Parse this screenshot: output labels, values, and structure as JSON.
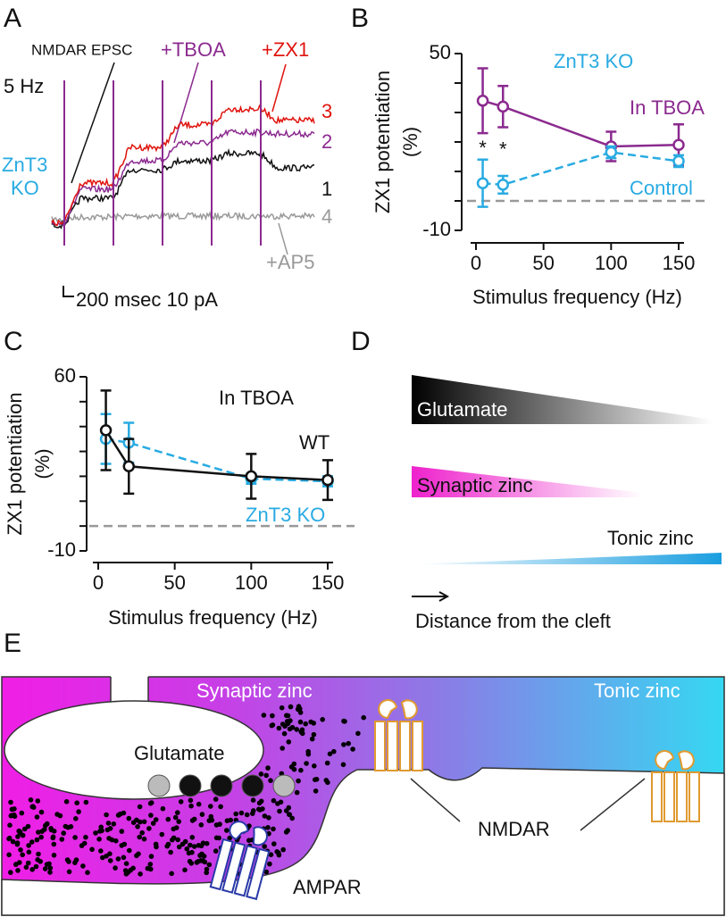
{
  "panel_labels": [
    "A",
    "B",
    "C",
    "D",
    "E"
  ],
  "panel_a": {
    "stimulus": "5 Hz",
    "genotype": [
      "ZnT3",
      "KO"
    ],
    "conditions": [
      "NMDAR EPSC",
      "+TBOA",
      "+ZX1",
      "+AP5"
    ],
    "trace_numbers": [
      "3",
      "2",
      "1",
      "4"
    ],
    "scale_bar": "200 msec 10 pA"
  },
  "chart_data": [
    {
      "type": "line",
      "title": "ZnT3 KO",
      "ylabel": [
        "ZX1 potentiation",
        "(%)"
      ],
      "xlabel": "Stimulus frequency (Hz)",
      "x": [
        5,
        20,
        100,
        150
      ],
      "xlim": [
        0,
        150
      ],
      "xticks": [
        0,
        50,
        100,
        150
      ],
      "ylim": [
        -10,
        50
      ],
      "yticks": [
        -10,
        50
      ],
      "minor_yticks": [
        0,
        10,
        20,
        30,
        40
      ],
      "reference_line": 0,
      "annotations": [
        "*",
        "*"
      ],
      "series": [
        {
          "name": "In TBOA",
          "color": "#8b2a8f",
          "dashed": false,
          "values": [
            34,
            32,
            18.5,
            19
          ],
          "errors": [
            11,
            7,
            5,
            7
          ]
        },
        {
          "name": "Control",
          "color": "#29abe2",
          "dashed": true,
          "values": [
            6,
            5.5,
            16.5,
            13.5
          ],
          "errors": [
            8,
            3,
            2,
            2
          ]
        }
      ]
    },
    {
      "type": "line",
      "title": "In TBOA",
      "ylabel": [
        "ZX1 potentiation",
        "(%)"
      ],
      "xlabel": "Stimulus frequency (Hz)",
      "x": [
        5,
        20,
        100,
        150
      ],
      "xlim": [
        0,
        150
      ],
      "xticks": [
        0,
        50,
        100,
        150
      ],
      "ylim": [
        -10,
        60
      ],
      "yticks": [
        -10,
        60
      ],
      "minor_yticks": [
        0,
        10,
        20,
        30,
        40,
        50
      ],
      "reference_line": 0,
      "series": [
        {
          "name": "ZnT3 KO",
          "color": "#29abe2",
          "dashed": true,
          "values": [
            35,
            33.5,
            19,
            18
          ],
          "errors": [
            10,
            8,
            2,
            2
          ]
        },
        {
          "name": "WT",
          "color": "#111111",
          "dashed": false,
          "values": [
            38.5,
            24,
            20,
            18.5
          ],
          "errors": [
            16,
            11,
            9,
            8
          ]
        }
      ]
    }
  ],
  "panel_d": {
    "gradients": [
      "Glutamate",
      "Synaptic zinc",
      "Tonic zinc"
    ],
    "axis_label": "Distance from the cleft"
  },
  "panel_e": {
    "zones": [
      "Synaptic zinc",
      "Tonic zinc"
    ],
    "vesicle": "Glutamate",
    "receptors": [
      "NMDAR",
      "AMPAR"
    ]
  }
}
